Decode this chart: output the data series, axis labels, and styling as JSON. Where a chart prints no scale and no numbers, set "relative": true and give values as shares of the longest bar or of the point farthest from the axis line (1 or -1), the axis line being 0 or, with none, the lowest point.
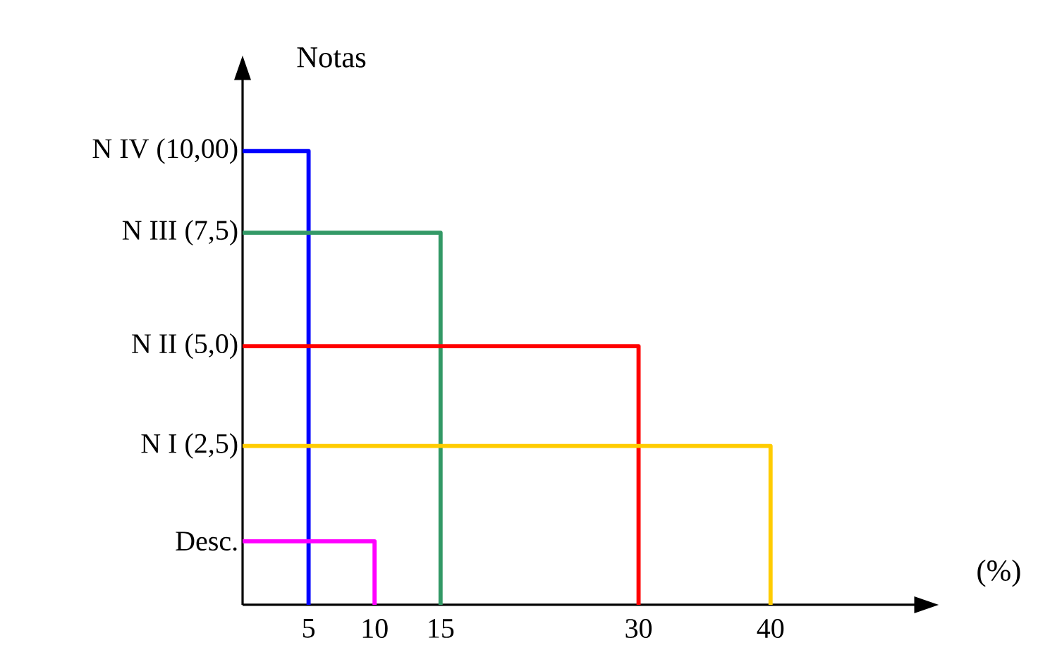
{
  "chart_data": {
    "type": "line",
    "relative": true,
    "xlabel": "(%)",
    "ylabel": "Notas",
    "marker": "none",
    "series": [
      {
        "name": "N IV (10,00)",
        "color": "#0000ff",
        "x": [
          0,
          5,
          5
        ],
        "values": [
          1,
          1,
          0
        ]
      },
      {
        "name": "N III (7,5)",
        "color": "#339966",
        "x": [
          0,
          15,
          15
        ],
        "values": [
          0.82,
          0.82,
          0
        ]
      },
      {
        "name": "N II (5,0)",
        "color": "#ff0000",
        "x": [
          0,
          30,
          30
        ],
        "values": [
          0.57,
          0.57,
          0
        ]
      },
      {
        "name": "N I (2,5)",
        "color": "#ffcc00",
        "x": [
          0,
          40,
          40
        ],
        "values": [
          0.35,
          0.35,
          0
        ]
      },
      {
        "name": "Desc.",
        "color": "#ff00ff",
        "x": [
          0,
          10,
          10
        ],
        "values": [
          0.14,
          0.14,
          0
        ]
      }
    ],
    "xlim": [
      0,
      51
    ],
    "xticks": [
      5,
      10,
      15,
      30,
      40
    ]
  }
}
